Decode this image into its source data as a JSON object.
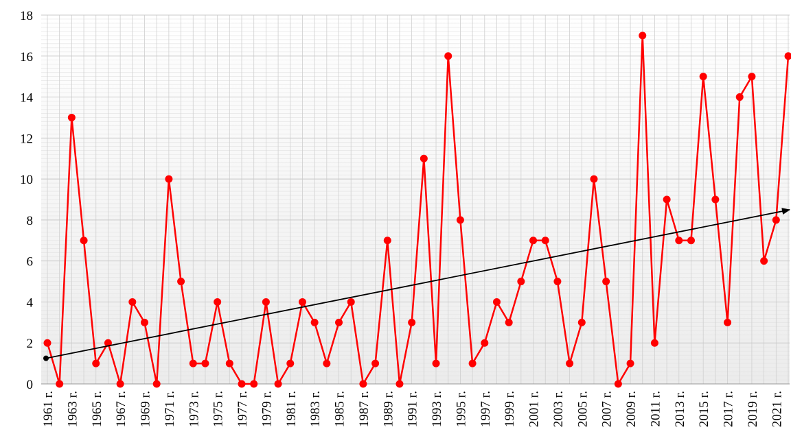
{
  "chart_data": {
    "type": "line",
    "categories": [
      "1961 г.",
      null,
      "1963 г.",
      null,
      "1965 г.",
      null,
      "1967 г.",
      null,
      "1969 г.",
      null,
      "1971 г.",
      null,
      "1973 г.",
      null,
      "1975 г.",
      null,
      "1977 г.",
      null,
      "1979 г.",
      null,
      "1981 г.",
      null,
      "1983 г.",
      null,
      "1985 г.",
      null,
      "1987 г.",
      null,
      "1989 г.",
      null,
      "1991 г.",
      null,
      "1993 г.",
      null,
      "1995 г.",
      null,
      "1997 г.",
      null,
      "1999 г.",
      null,
      "2001 г.",
      null,
      "2003 г.",
      null,
      "2005 г.",
      null,
      "2007 г.",
      null,
      "2009 г.",
      null,
      "2011 г.",
      null,
      "2013 г.",
      null,
      "2015 г.",
      null,
      "2017 г.",
      null,
      "2019 г.",
      null,
      "2021 г.",
      null
    ],
    "values": [
      2,
      0,
      13,
      7,
      1,
      2,
      0,
      4,
      3,
      0,
      10,
      5,
      1,
      1,
      4,
      1,
      0,
      0,
      4,
      0,
      1,
      4,
      3,
      1,
      3,
      4,
      0,
      1,
      7,
      0,
      3,
      11,
      1,
      16,
      8,
      1,
      2,
      4,
      3,
      5,
      7,
      7,
      5,
      1,
      3,
      10,
      5,
      0,
      1,
      17,
      2,
      9,
      7,
      7,
      15,
      9,
      3,
      14,
      15,
      6,
      8,
      16
    ],
    "color": "#ff0000",
    "trendline": {
      "start": 1.25,
      "end": 8.5,
      "color": "#000000"
    },
    "ylim": [
      0,
      18
    ],
    "yticks": [
      0,
      2,
      4,
      6,
      8,
      10,
      12,
      14,
      16,
      18
    ],
    "grid": true
  }
}
